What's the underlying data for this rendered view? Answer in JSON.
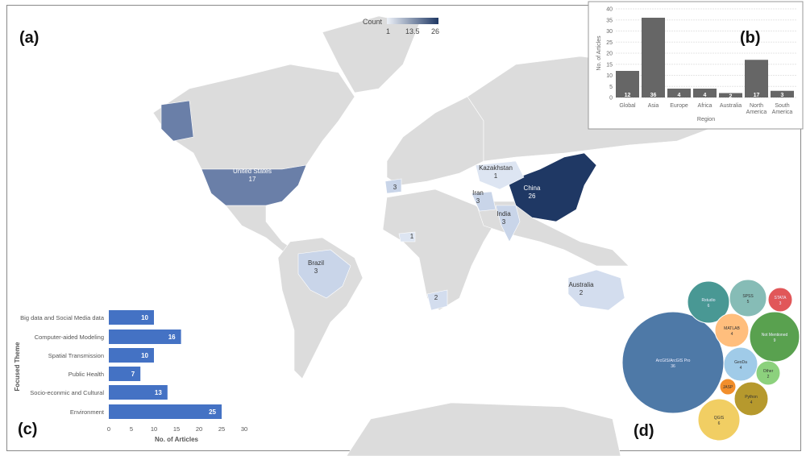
{
  "panels": {
    "a": "(a)",
    "b": "(b)",
    "c": "(c)",
    "d": "(d)"
  },
  "map": {
    "legend": {
      "title": "Count",
      "min": "1",
      "mid": "13.5",
      "max": "26",
      "color_low": "#dfe6f2",
      "color_high": "#1f3864"
    },
    "base_color": "#dcdcdc",
    "countries": [
      {
        "name": "United States",
        "count": "17",
        "color": "#6a7fa8"
      },
      {
        "name": "China",
        "count": "26",
        "color": "#1f3864"
      },
      {
        "name": "Kazakhstan",
        "count": "1",
        "color": "#dde5f2"
      },
      {
        "name": "Iran",
        "count": "3",
        "color": "#c9d5e9"
      },
      {
        "name": "India",
        "count": "3",
        "color": "#c9d5e9"
      },
      {
        "name": "Brazil",
        "count": "3",
        "color": "#c9d5e9"
      },
      {
        "name": "Australia",
        "count": "2",
        "color": "#d3ddee"
      }
    ],
    "unlabeled_counts": [
      {
        "count": "3",
        "color": "#c9d5e9"
      },
      {
        "count": "1",
        "color": "#dde5f2"
      },
      {
        "count": "2",
        "color": "#d3ddee"
      }
    ]
  },
  "chart_data": [
    {
      "type": "bar",
      "panel": "b",
      "categories": [
        "Global",
        "Asia",
        "Europe",
        "Africa",
        "Australia",
        "North America",
        "South America"
      ],
      "values": [
        12,
        36,
        4,
        4,
        2,
        17,
        3
      ],
      "xlabel": "Region",
      "ylabel": "No. of Articles",
      "ylim": [
        0,
        40
      ],
      "yticks": [
        0,
        5,
        10,
        15,
        20,
        25,
        30,
        35,
        40
      ],
      "color": "#666666",
      "grid": true
    },
    {
      "type": "bar",
      "orientation": "horizontal",
      "panel": "c",
      "categories": [
        "Big data and Social Media data",
        "Computer-aided Modeling",
        "Spatial Transmission",
        "Public Health",
        "Socio-econmic and Cultural",
        "Environment"
      ],
      "values": [
        10,
        16,
        10,
        7,
        13,
        25
      ],
      "xlabel": "No. of Articles",
      "ylabel": "Focused Theme",
      "xlim": [
        0,
        30
      ],
      "xticks": [
        0,
        5,
        10,
        15,
        20,
        25,
        30
      ],
      "color": "#4472c4"
    },
    {
      "type": "bubble",
      "panel": "d",
      "items": [
        {
          "label": "ArcGIS/ArcGIS Pro",
          "value": "36",
          "color": "#4e79a7"
        },
        {
          "label": "Rstudio",
          "value": "6",
          "color": "#499894"
        },
        {
          "label": "SPSS",
          "value": "5",
          "color": "#86bcb6"
        },
        {
          "label": "STATA",
          "value": "3",
          "color": "#e15759"
        },
        {
          "label": "MATLAB",
          "value": "4",
          "color": "#ffbe7d"
        },
        {
          "label": "Not Mentioned",
          "value": "9",
          "color": "#59a14f"
        },
        {
          "label": "GeoDa",
          "value": "4",
          "color": "#a0cbe8"
        },
        {
          "label": "Other",
          "value": "2",
          "color": "#8cd17d"
        },
        {
          "label": "JASP",
          "value": "",
          "color": "#f28e2b"
        },
        {
          "label": "Python",
          "value": "4",
          "color": "#b6992d"
        },
        {
          "label": "QGIS",
          "value": "6",
          "color": "#f1ce63"
        }
      ]
    }
  ]
}
